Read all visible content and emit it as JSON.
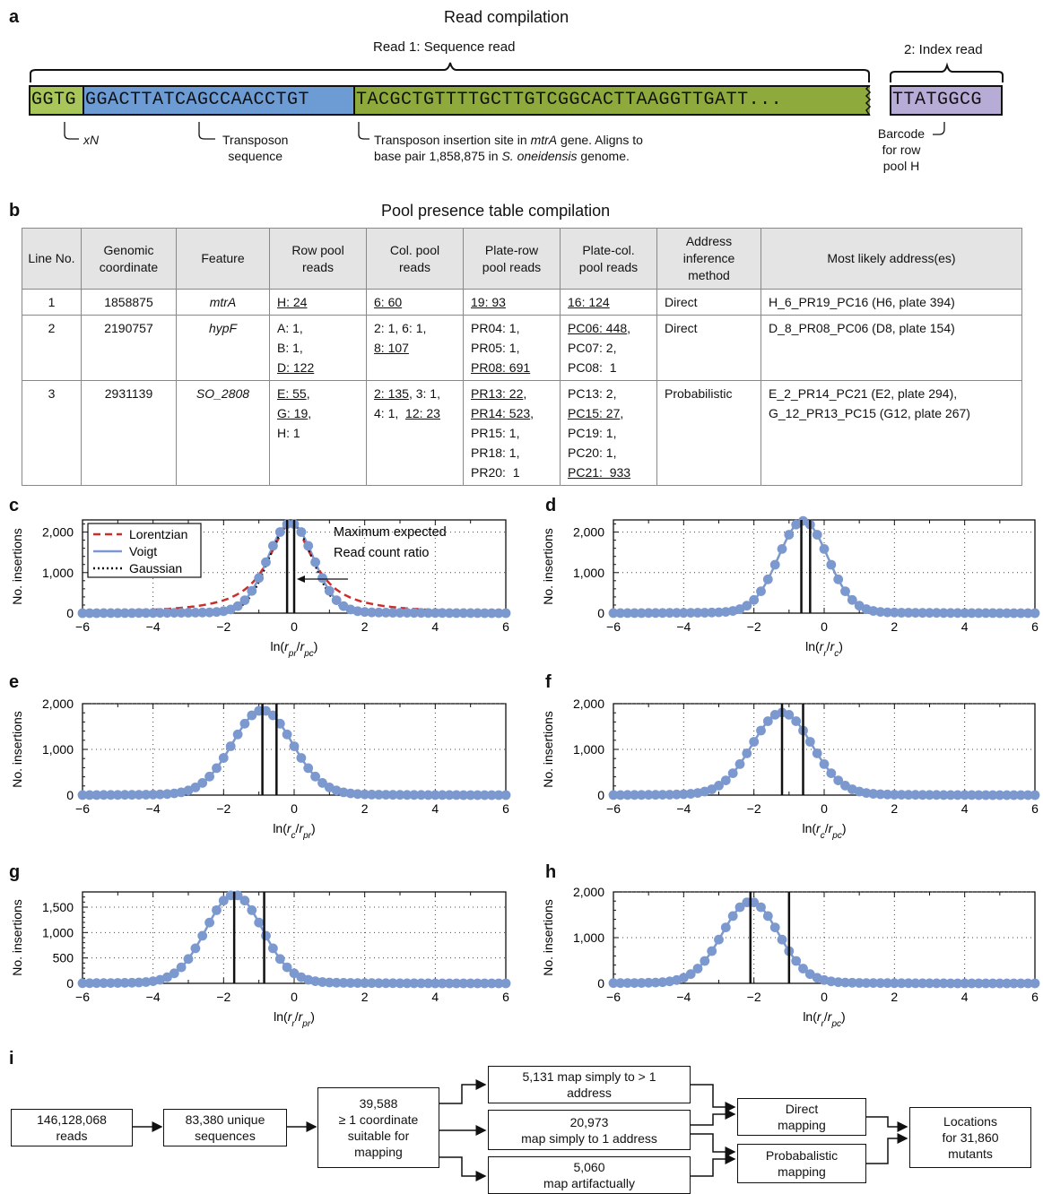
{
  "panel_a": {
    "label": "a",
    "title": "Read compilation",
    "read1_label": "Read 1: Sequence read",
    "index_label": "2: Index read",
    "seg_xn": "GGTG",
    "seg_transposon": "GGACTTATCAGCCAACCTGT",
    "seg_insertion": "TACGCTGTTTTGCTTGTCGGCACTTAAGGTTGATT...",
    "seg_barcode": "TTATGGCG",
    "note_xn": "xN",
    "note_transposon": "Transposon\nsequence",
    "note_insert_1": "Transposon insertion site in ",
    "note_insert_gene": "mtrA",
    "note_insert_2": " gene. Aligns to",
    "note_insert_3": "base pair 1,858,875 in ",
    "note_insert_org": "S. oneidensis",
    "note_insert_4": " genome.",
    "note_barcode": "Barcode\nfor row\npool H",
    "colors": {
      "xn": "#a8c65a",
      "transposon": "#6d9bd4",
      "insertion": "#8faa3c",
      "barcode": "#b6acd6"
    }
  },
  "panel_b": {
    "label": "b",
    "title": "Pool presence table compilation",
    "headers": [
      "Line No.",
      "Genomic\ncoordinate",
      "Feature",
      "Row pool\nreads",
      "Col. pool\nreads",
      "Plate-row\npool reads",
      "Plate-col.\npool reads",
      "Address\ninference\nmethod",
      "Most likely address(es)"
    ],
    "rows": [
      {
        "line": "1",
        "coord": "1858875",
        "feature": "mtrA",
        "row": [
          {
            "t": "H: 24",
            "u": true
          }
        ],
        "col": [
          {
            "t": "6: 60",
            "u": true
          }
        ],
        "prow": [
          {
            "t": "19: 93",
            "u": true
          }
        ],
        "pcol": [
          {
            "t": "16: 124",
            "u": true
          }
        ],
        "method": "Direct",
        "address": "H_6_PR19_PC16 (H6, plate 394)"
      },
      {
        "line": "2",
        "coord": "2190757",
        "feature": "hypF",
        "row": [
          {
            "t": "A: 1,",
            "u": false
          },
          {
            "br": true
          },
          {
            "t": "B: 1,",
            "u": false
          },
          {
            "br": true
          },
          {
            "t": "D: 122",
            "u": true
          }
        ],
        "col": [
          {
            "t": "2: 1, 6: 1,",
            "u": false
          },
          {
            "br": true
          },
          {
            "t": "8: 107",
            "u": true
          }
        ],
        "prow": [
          {
            "t": "PR04: 1,",
            "u": false
          },
          {
            "br": true
          },
          {
            "t": "PR05: 1,",
            "u": false
          },
          {
            "br": true
          },
          {
            "t": "PR08: 691",
            "u": true
          }
        ],
        "pcol": [
          {
            "t": "PC06: 448",
            "u": true
          },
          {
            "t": ",",
            "u": false
          },
          {
            "br": true
          },
          {
            "t": "PC07: 2,",
            "u": false
          },
          {
            "br": true
          },
          {
            "t": "PC08:  1",
            "u": false
          }
        ],
        "method": "Direct",
        "address": "D_8_PR08_PC06 (D8, plate 154)"
      },
      {
        "line": "3",
        "coord": "2931139",
        "feature": "SO_2808",
        "row": [
          {
            "t": "E: 55",
            "u": true
          },
          {
            "t": ",",
            "u": false
          },
          {
            "br": true
          },
          {
            "t": "G: 19",
            "u": true
          },
          {
            "t": ",",
            "u": false
          },
          {
            "br": true
          },
          {
            "t": "H: 1",
            "u": false
          }
        ],
        "col": [
          {
            "t": "2: 135",
            "u": true
          },
          {
            "t": ", 3: 1,",
            "u": false
          },
          {
            "br": true
          },
          {
            "t": "4: 1,  ",
            "u": false
          },
          {
            "t": "12: 23",
            "u": true
          }
        ],
        "prow": [
          {
            "t": "PR13: 22",
            "u": true
          },
          {
            "t": ",",
            "u": false
          },
          {
            "br": true
          },
          {
            "t": "PR14: 523",
            "u": true
          },
          {
            "t": ",",
            "u": false
          },
          {
            "br": true
          },
          {
            "t": "PR15: 1,",
            "u": false
          },
          {
            "br": true
          },
          {
            "t": "PR18: 1,",
            "u": false
          },
          {
            "br": true
          },
          {
            "t": "PR20:  1",
            "u": false
          }
        ],
        "pcol": [
          {
            "t": "PC13: 2,",
            "u": false
          },
          {
            "br": true
          },
          {
            "t": "PC15: 27",
            "u": true
          },
          {
            "t": ",",
            "u": false
          },
          {
            "br": true
          },
          {
            "t": "PC19: 1,",
            "u": false
          },
          {
            "br": true
          },
          {
            "t": "PC20: 1,",
            "u": false
          },
          {
            "br": true
          },
          {
            "t": "PC21:  933",
            "u": true
          }
        ],
        "method": "Probabilistic",
        "address": "E_2_PR14_PC21 (E2, plate 294),\nG_12_PR13_PC15 (G12, plate 267)"
      }
    ]
  },
  "chart_data": [
    {
      "panel": "c",
      "type": "scatter",
      "xlabel": "ln(r_pr/r_pc)",
      "ylabel": "No. insertions",
      "xlim": [
        -6,
        6
      ],
      "ylim": [
        0,
        2300
      ],
      "yticks": [
        0,
        1000,
        2000
      ],
      "ytick_labels": [
        "0",
        "1,000",
        "2,000"
      ],
      "xticks": [
        -6,
        -4,
        -2,
        0,
        2,
        4,
        6
      ],
      "peak": 2200,
      "center": -0.1,
      "sigma": 0.65,
      "vlines": [
        -0.2,
        0.0
      ],
      "color": "#7b98cf",
      "legend": [
        "Lorentzian",
        "Voigt",
        "Gaussian"
      ],
      "annotation": [
        "Maximum expected",
        "Read count ratio"
      ]
    },
    {
      "panel": "d",
      "type": "scatter",
      "xlabel": "ln(r_r/r_c)",
      "ylabel": "No. insertions",
      "xlim": [
        -6,
        6
      ],
      "ylim": [
        0,
        2300
      ],
      "yticks": [
        0,
        1000,
        2000
      ],
      "ytick_labels": [
        "0",
        "1,000",
        "2,000"
      ],
      "xticks": [
        -6,
        -4,
        -2,
        0,
        2,
        4,
        6
      ],
      "peak": 2250,
      "center": -0.6,
      "sigma": 0.7,
      "vlines": [
        -0.65,
        -0.4
      ],
      "color": "#7b98cf"
    },
    {
      "panel": "e",
      "type": "scatter",
      "xlabel": "ln(r_c/r_pr)",
      "ylabel": "No. insertions",
      "xlim": [
        -6,
        6
      ],
      "ylim": [
        0,
        2000
      ],
      "yticks": [
        0,
        1000,
        2000
      ],
      "ytick_labels": [
        "0",
        "1,000",
        "2,000"
      ],
      "xticks": [
        -6,
        -4,
        -2,
        0,
        2,
        4,
        6
      ],
      "peak": 1830,
      "center": -0.9,
      "sigma": 0.85,
      "vlines": [
        -0.9,
        -0.5
      ],
      "color": "#7b98cf"
    },
    {
      "panel": "f",
      "type": "scatter",
      "xlabel": "ln(r_c/r_pc)",
      "ylabel": "No. insertions",
      "xlim": [
        -6,
        6
      ],
      "ylim": [
        0,
        2000
      ],
      "yticks": [
        0,
        1000,
        2000
      ],
      "ytick_labels": [
        "0",
        "1,000",
        "2,000"
      ],
      "xticks": [
        -6,
        -4,
        -2,
        0,
        2,
        4,
        6
      ],
      "peak": 1780,
      "center": -1.2,
      "sigma": 0.85,
      "vlines": [
        -1.2,
        -0.6
      ],
      "color": "#7b98cf"
    },
    {
      "panel": "g",
      "type": "scatter",
      "xlabel": "ln(r_r/r_pr)",
      "ylabel": "No. insertions",
      "xlim": [
        -6,
        6
      ],
      "ylim": [
        0,
        1800
      ],
      "yticks": [
        0,
        500,
        1000,
        1500
      ],
      "ytick_labels": [
        "0",
        "500",
        "1,000",
        "1,500"
      ],
      "xticks": [
        -6,
        -4,
        -2,
        0,
        2,
        4,
        6
      ],
      "peak": 1720,
      "center": -1.7,
      "sigma": 0.8,
      "vlines": [
        -1.7,
        -0.85
      ],
      "color": "#7b98cf"
    },
    {
      "panel": "h",
      "type": "scatter",
      "xlabel": "ln(r_r/r_pc)",
      "ylabel": "No. insertions",
      "xlim": [
        -6,
        6
      ],
      "ylim": [
        0,
        2000
      ],
      "yticks": [
        0,
        1000,
        2000
      ],
      "ytick_labels": [
        "0",
        "1,000",
        "2,000"
      ],
      "xticks": [
        -6,
        -4,
        -2,
        0,
        2,
        4,
        6
      ],
      "peak": 1760,
      "center": -2.1,
      "sigma": 0.8,
      "vlines": [
        -2.1,
        -1.0
      ],
      "color": "#7b98cf"
    }
  ],
  "panel_i": {
    "label": "i",
    "reads": "146,128,068\nreads",
    "unique": "83,380 unique\nsequences",
    "suitable": "39,588\n≥ 1 coordinate\nsuitable for\nmapping",
    "multi": "5,131 map simply to > 1\naddress",
    "single": "20,973\nmap simply to 1 address",
    "artifact": "5,060\nmap artifactually",
    "direct": "Direct\nmapping",
    "probabilistic": "Probabalistic\nmapping",
    "locations": "Locations\nfor 31,860\nmutants"
  }
}
